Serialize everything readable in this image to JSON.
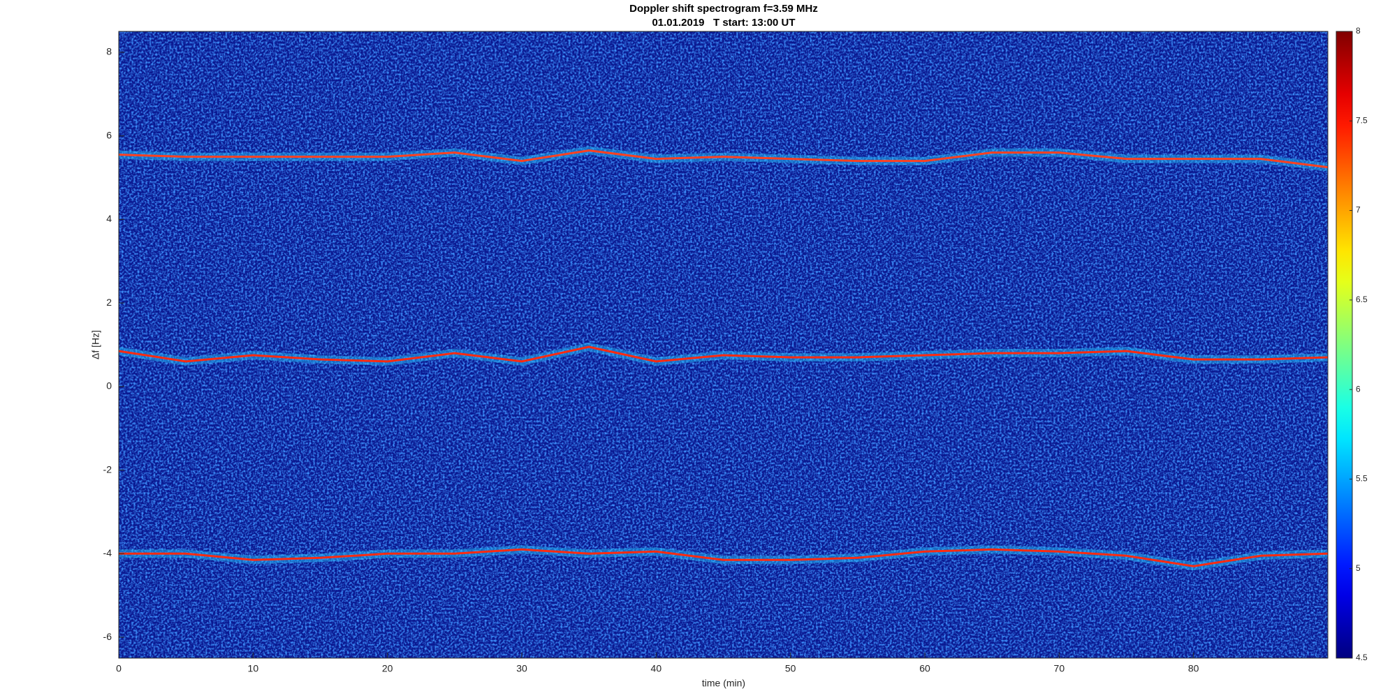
{
  "chart_data": {
    "type": "spectrogram",
    "title": "Doppler shift spectrogram f=3.59 MHz",
    "subtitle": "01.01.2019   T start: 13:00 UT",
    "x_label": "time (min)",
    "y_label": "Δf [Hz]",
    "xlim": [
      0,
      90
    ],
    "ylim": [
      -6.5,
      8.5
    ],
    "xticks": [
      0,
      10,
      20,
      30,
      40,
      50,
      60,
      70,
      80
    ],
    "yticks": [
      -6,
      -4,
      -2,
      0,
      2,
      4,
      6,
      8
    ],
    "background_color": "#0a1890",
    "glow_color": "#27c8ff",
    "colormap": "jet",
    "clim": [
      4.5,
      8
    ],
    "cticks": [
      4.5,
      5,
      5.5,
      6,
      6.5,
      7,
      7.5,
      8
    ],
    "x": [
      0,
      5,
      10,
      15,
      20,
      25,
      30,
      35,
      40,
      45,
      50,
      55,
      60,
      65,
      70,
      75,
      80,
      85,
      90
    ],
    "series": [
      {
        "color": "#ff4020",
        "values": [
          5.55,
          5.5,
          5.5,
          5.5,
          5.5,
          5.6,
          5.4,
          5.65,
          5.45,
          5.5,
          5.45,
          5.4,
          5.4,
          5.6,
          5.6,
          5.45,
          5.45,
          5.45,
          5.25
        ]
      },
      {
        "color": "#ff2a10",
        "values": [
          0.85,
          0.6,
          0.75,
          0.65,
          0.6,
          0.8,
          0.6,
          0.95,
          0.6,
          0.75,
          0.7,
          0.7,
          0.75,
          0.8,
          0.8,
          0.85,
          0.65,
          0.65,
          0.7
        ]
      },
      {
        "color": "#ff2a10",
        "values": [
          -4.0,
          -4.0,
          -4.15,
          -4.1,
          -4.0,
          -4.0,
          -3.9,
          -4.0,
          -3.95,
          -4.15,
          -4.15,
          -4.1,
          -3.95,
          -3.9,
          -3.95,
          -4.05,
          -4.3,
          -4.05,
          -4.0
        ]
      }
    ]
  }
}
